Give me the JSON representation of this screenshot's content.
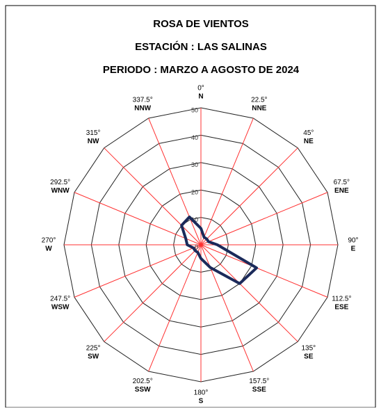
{
  "chart_data": {
    "type": "radar",
    "title": "ROSA DE VIENTOS",
    "subtitle": "ESTACIÓN :  LAS SALINAS",
    "period": "PERIODO : MARZO A AGOSTO DE 2024",
    "categories": [
      "N",
      "NNE",
      "NE",
      "ENE",
      "E",
      "ESE",
      "SE",
      "SSE",
      "S",
      "SSW",
      "SW",
      "WSW",
      "W",
      "WNW",
      "NW",
      "NNW"
    ],
    "angle_labels": [
      "0°",
      "22.5°",
      "45°",
      "67.5°",
      "90°",
      "112.5°",
      "135°",
      "157.5°",
      "180°",
      "202.5°",
      "225°",
      "247.5°",
      "270°",
      "292.5°",
      "315°",
      "337.5°"
    ],
    "series": [
      {
        "color": "#1b2a5a",
        "values": [
          6,
          3,
          3,
          3,
          6,
          22,
          20,
          9,
          5,
          3,
          3,
          3,
          5,
          6,
          10,
          11
        ]
      }
    ],
    "ylim": [
      0,
      50
    ],
    "yticks": [
      0,
      10,
      20,
      30,
      40,
      50
    ],
    "ring_color": "#222222",
    "spoke_color": "#ff3030"
  }
}
